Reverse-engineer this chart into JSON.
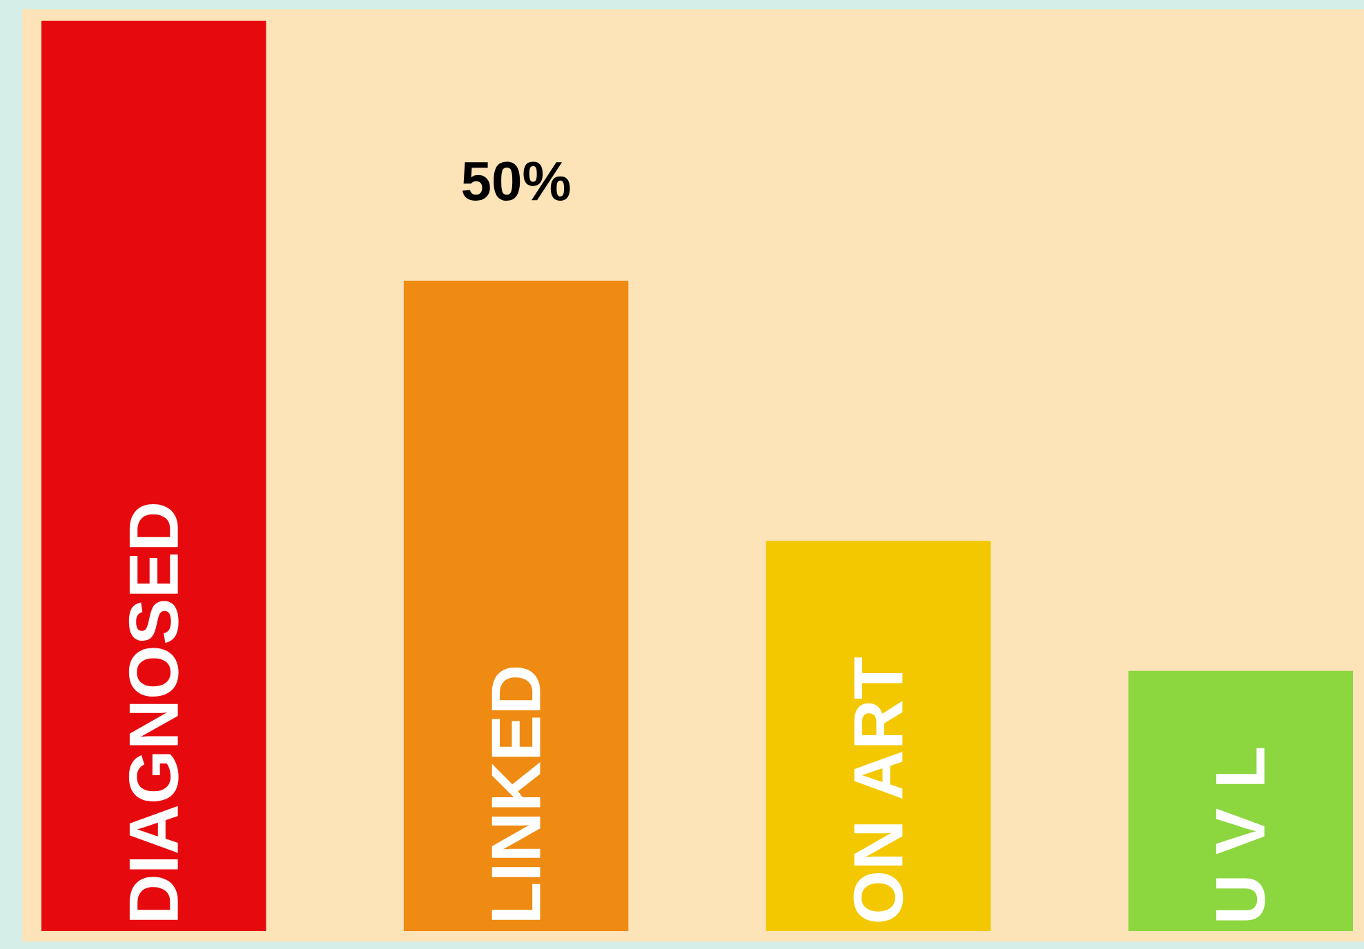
{
  "chart_data": {
    "type": "bar",
    "categories": [
      "DIAGNOSED",
      "LINKED",
      "ON ART",
      "U V L"
    ],
    "values": [
      70,
      50,
      30,
      20
    ],
    "colors": [
      "#e60a0f",
      "#ef8a12",
      "#f3c800",
      "#8cd640"
    ],
    "value_labels": [
      null,
      "50%",
      null,
      null
    ]
  }
}
